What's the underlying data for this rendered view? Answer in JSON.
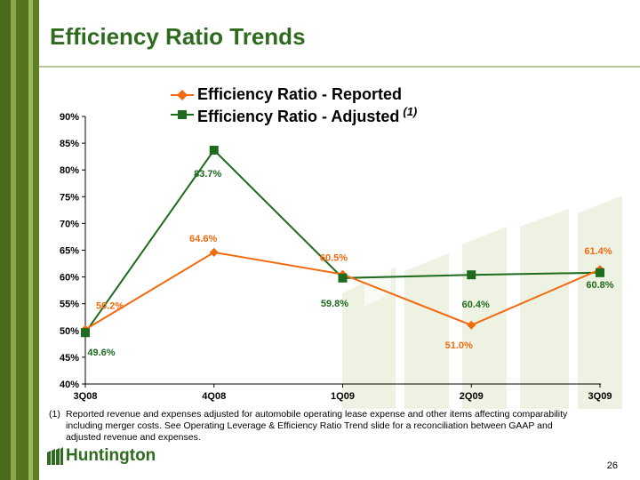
{
  "title": "Efficiency Ratio Trends",
  "colors": {
    "reported": "#f26a0f",
    "adjusted": "#1e6b1e",
    "title": "#2e6b1f",
    "stripe_dark": "#4a6a1c",
    "stripe_light": "#8aa84a",
    "watermark": "#eef2e2"
  },
  "legend": {
    "reported": "Efficiency Ratio - Reported",
    "adjusted": "Efficiency Ratio - Adjusted",
    "adjusted_note": "(1)"
  },
  "chart_data": {
    "type": "line",
    "categories": [
      "3Q08",
      "4Q08",
      "1Q09",
      "2Q09",
      "3Q09"
    ],
    "y_ticks": [
      "40%",
      "45%",
      "50%",
      "55%",
      "60%",
      "65%",
      "70%",
      "75%",
      "80%",
      "85%",
      "90%"
    ],
    "ylim": [
      40,
      90
    ],
    "y_unit": "%",
    "grid": false,
    "legend_position": "top",
    "series": [
      {
        "name": "Efficiency Ratio - Reported",
        "marker": "diamond",
        "values": [
          50.2,
          64.6,
          60.5,
          51.0,
          61.4
        ],
        "labels": [
          "50.2%",
          "64.6%",
          "60.5%",
          "51.0%",
          "61.4%"
        ]
      },
      {
        "name": "Efficiency Ratio - Adjusted (1)",
        "marker": "square",
        "values": [
          49.6,
          83.7,
          59.8,
          60.4,
          60.8
        ],
        "labels": [
          "49.6%",
          "83.7%",
          "59.8%",
          "60.4%",
          "60.8%"
        ]
      }
    ]
  },
  "footnote": {
    "marker": "(1)",
    "text": "Reported revenue and expenses adjusted for automobile operating lease expense and other items affecting comparability including merger costs.  See Operating Leverage & Efficiency Ratio Trend slide for a reconciliation between GAAP and adjusted revenue and expenses."
  },
  "logo_text": "Huntington",
  "page_number": "26"
}
